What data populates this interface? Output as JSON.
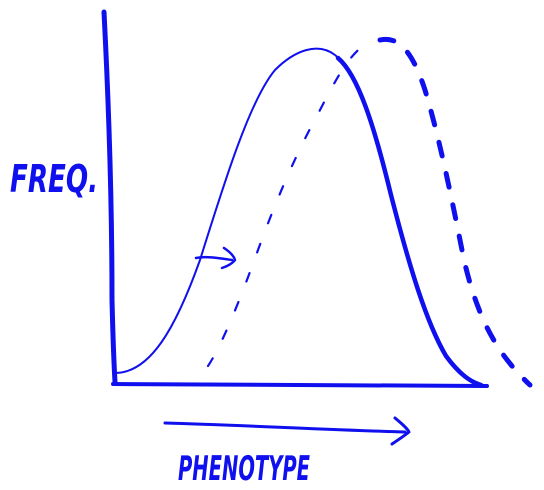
{
  "diagram": {
    "ink_color": "#1010ee",
    "background": "#ffffff",
    "y_axis_label": "FREQ.",
    "x_axis_label": "PHENOTYPE",
    "solid_curve": "original-distribution",
    "dashed_curve": "shifted-distribution",
    "shift_arrow_icon": "right-arrow-icon",
    "x_direction_arrow_icon": "long-right-arrow-icon"
  }
}
